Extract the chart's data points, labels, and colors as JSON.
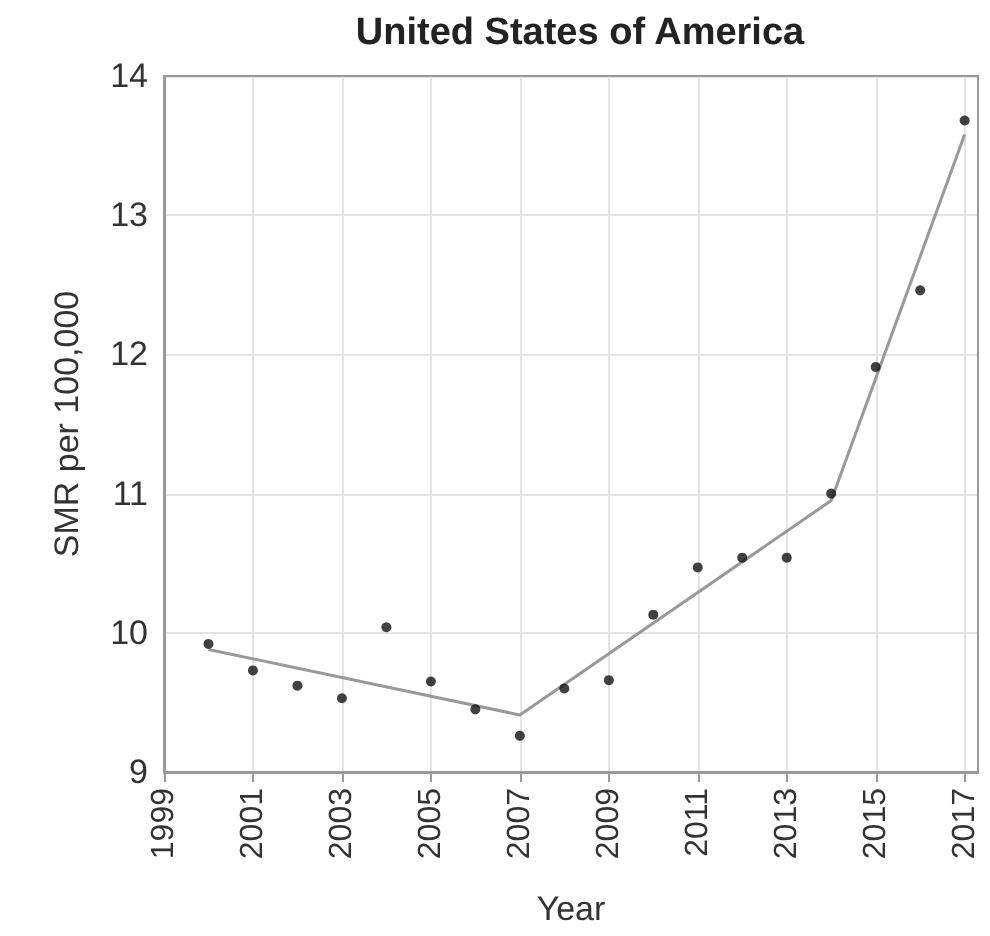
{
  "chart_data": {
    "type": "scatter",
    "title": "United States of America",
    "xlabel": "Year",
    "ylabel": "SMR per 100,000",
    "xlim": [
      1999,
      2017.3
    ],
    "xticks": [
      1999,
      2001,
      2003,
      2005,
      2007,
      2009,
      2011,
      2013,
      2015,
      2017
    ],
    "ylim": [
      9,
      14
    ],
    "yticks": [
      9,
      10,
      11,
      12,
      13,
      14
    ],
    "grid": true,
    "series": [
      {
        "color": "#111111",
        "marker": "circle",
        "x": [
          2000,
          2001,
          2002,
          2003,
          2004,
          2005,
          2006,
          2007,
          2008,
          2009,
          2010,
          2011,
          2012,
          2013,
          2014,
          2015,
          2016,
          2017
        ],
        "values": [
          9.92,
          9.73,
          9.62,
          9.53,
          10.04,
          9.65,
          9.45,
          9.26,
          9.6,
          9.66,
          10.13,
          10.47,
          10.54,
          10.54,
          11.0,
          11.91,
          12.46,
          13.68
        ]
      },
      {
        "type": "line",
        "color": "#999999",
        "marker": "none",
        "line_style": "solid",
        "x": [
          2000,
          2007,
          2014,
          2017
        ],
        "values": [
          9.88,
          9.41,
          10.95,
          13.58
        ]
      }
    ]
  }
}
